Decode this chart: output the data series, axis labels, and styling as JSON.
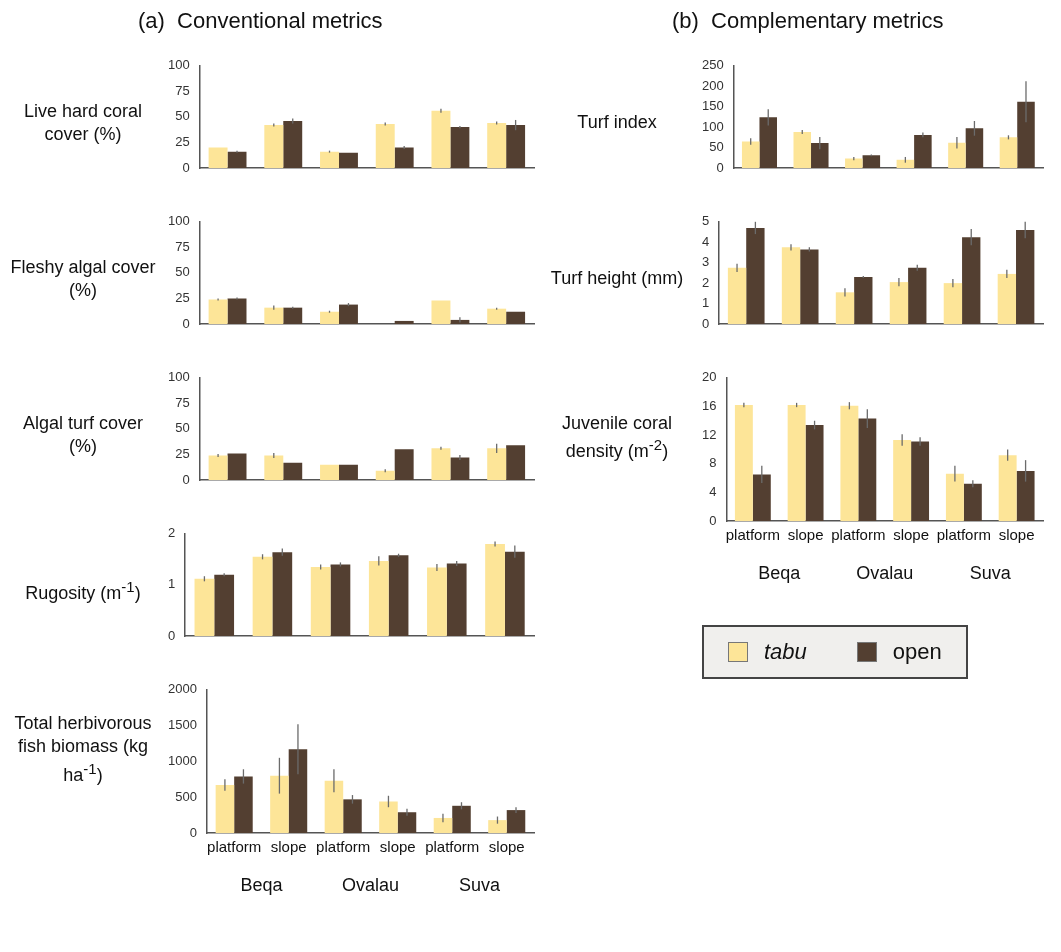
{
  "chart_data": [
    {
      "type": "bar",
      "title": "(a)  Conventional metrics",
      "ylabel": "Live hard coral cover (%)",
      "categories": [
        null,
        null,
        null,
        null,
        null,
        null
      ],
      "ylim": [
        0,
        100
      ],
      "yticks": [
        0,
        25,
        50,
        75,
        100
      ],
      "series": [
        {
          "color": "#fde598",
          "values": [
            20,
            42,
            16,
            43,
            56,
            44
          ],
          "errors": [
            null,
            1.5,
            1,
            1.5,
            2,
            1.5
          ]
        },
        {
          "color": "#533f31",
          "values": [
            16,
            46,
            15,
            20,
            40,
            42
          ],
          "errors": [
            1,
            2.5,
            null,
            1.5,
            1,
            5
          ]
        }
      ]
    },
    {
      "type": "bar",
      "ylabel": "Fleshy algal cover (%)",
      "categories": [
        null,
        null,
        null,
        null,
        null,
        null
      ],
      "ylim": [
        0,
        100
      ],
      "yticks": [
        0,
        25,
        50,
        75,
        100
      ],
      "series": [
        {
          "color": "#fde598",
          "values": [
            24,
            16,
            12,
            null,
            23,
            15
          ],
          "errors": [
            1,
            2,
            1,
            null,
            null,
            1
          ]
        },
        {
          "color": "#533f31",
          "values": [
            25,
            16,
            19,
            3,
            4,
            12
          ],
          "errors": [
            1,
            1,
            1.5,
            null,
            2.5,
            null
          ]
        }
      ]
    },
    {
      "type": "bar",
      "ylabel": "Algal turf cover (%)",
      "categories": [
        null,
        null,
        null,
        null,
        null,
        null
      ],
      "ylim": [
        0,
        100
      ],
      "yticks": [
        0,
        25,
        50,
        75,
        100
      ],
      "series": [
        {
          "color": "#fde598",
          "values": [
            24,
            24,
            15,
            9,
            31,
            31
          ],
          "errors": [
            1.5,
            2.5,
            null,
            1.5,
            1.5,
            4.5
          ]
        },
        {
          "color": "#533f31",
          "values": [
            26,
            17,
            15,
            30,
            22,
            34
          ],
          "errors": [
            null,
            null,
            null,
            null,
            2.5,
            null
          ]
        }
      ]
    },
    {
      "type": "bar",
      "ylabel": "Rugosity (m$^{-1}$)",
      "categories": [
        null,
        null,
        null,
        null,
        null,
        null
      ],
      "ylim": [
        0,
        2
      ],
      "yticks": [
        0,
        1,
        2
      ],
      "series": [
        {
          "color": "#fde598",
          "values": [
            1.12,
            1.55,
            1.35,
            1.47,
            1.34,
            1.8
          ],
          "errors": [
            0.05,
            0.05,
            0.05,
            0.09,
            0.07,
            0.05
          ]
        },
        {
          "color": "#533f31",
          "values": [
            1.2,
            1.64,
            1.4,
            1.58,
            1.42,
            1.65
          ],
          "errors": [
            0.03,
            0.07,
            0.04,
            0.03,
            0.05,
            0.12
          ]
        }
      ]
    },
    {
      "type": "bar",
      "ylabel": "Total herbivorous fish biomass (kg ha$^{-1}$)",
      "categories": [
        "platform",
        "slope",
        "platform",
        "slope",
        "platform",
        "slope"
      ],
      "ylim": [
        0,
        2000
      ],
      "yticks": [
        0,
        500,
        1000,
        1500,
        2000
      ],
      "annotations": [
        "Beqa",
        "Ovalau",
        "Suva"
      ],
      "series": [
        {
          "color": "#fde598",
          "values": [
            670,
            800,
            730,
            440,
            210,
            180
          ],
          "errors": [
            80,
            250,
            160,
            80,
            60,
            50
          ]
        },
        {
          "color": "#533f31",
          "values": [
            790,
            1170,
            470,
            290,
            380,
            320
          ],
          "errors": [
            100,
            350,
            60,
            50,
            50,
            40
          ]
        }
      ]
    },
    {
      "type": "bar",
      "title": "(b)  Complementary metrics",
      "ylabel": "Turf index",
      "categories": [
        null,
        null,
        null,
        null,
        null,
        null
      ],
      "ylim": [
        0,
        250
      ],
      "yticks": [
        0,
        50,
        100,
        150,
        200,
        250
      ],
      "series": [
        {
          "color": "#fde598",
          "values": [
            65,
            88,
            23,
            20,
            62,
            75
          ],
          "errors": [
            8,
            5,
            4,
            7,
            14,
            5
          ]
        },
        {
          "color": "#533f31",
          "values": [
            124,
            61,
            31,
            81,
            97,
            162
          ],
          "errors": [
            20,
            15,
            2,
            6,
            18,
            50
          ]
        }
      ]
    },
    {
      "type": "bar",
      "ylabel": "Turf height (mm)",
      "categories": [
        null,
        null,
        null,
        null,
        null,
        null
      ],
      "ylim": [
        0,
        5
      ],
      "yticks": [
        0,
        1,
        2,
        3,
        4,
        5
      ],
      "series": [
        {
          "color": "#fde598",
          "values": [
            2.75,
            3.75,
            1.55,
            2.05,
            2.0,
            2.45
          ],
          "errors": [
            0.2,
            0.15,
            0.2,
            0.2,
            0.2,
            0.2
          ]
        },
        {
          "color": "#533f31",
          "values": [
            4.7,
            3.65,
            2.3,
            2.75,
            4.25,
            4.6
          ],
          "errors": [
            0.3,
            0.1,
            0.05,
            0.15,
            0.4,
            0.4
          ]
        }
      ]
    },
    {
      "type": "bar",
      "ylabel": "Juvenile coral density (m$^{-2}$)",
      "categories": [
        "platform",
        "slope",
        "platform",
        "slope",
        "platform",
        "slope"
      ],
      "ylim": [
        0,
        20
      ],
      "yticks": [
        0,
        4,
        8,
        12,
        16,
        20
      ],
      "annotations": [
        "Beqa",
        "Ovalau",
        "Suva"
      ],
      "legend": "bottom",
      "series": [
        {
          "name": "tabu",
          "color": "#fde598",
          "values": [
            16.2,
            16.2,
            16.1,
            11.3,
            6.6,
            9.2
          ],
          "errors": [
            0.3,
            0.3,
            0.5,
            0.8,
            1.1,
            0.8
          ]
        },
        {
          "name": "open",
          "color": "#533f31",
          "values": [
            6.5,
            13.4,
            14.3,
            11.1,
            5.2,
            7.0
          ],
          "errors": [
            1.2,
            0.6,
            1.3,
            0.6,
            0.5,
            1.5
          ]
        }
      ]
    }
  ]
}
